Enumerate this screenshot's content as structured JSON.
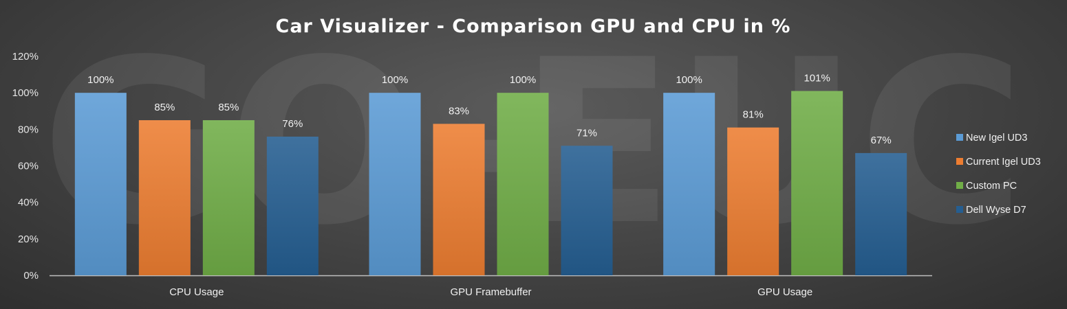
{
  "chart_data": {
    "type": "bar",
    "title": "Car Visualizer - Comparison GPU and CPU in %",
    "watermark": "GO-EUC",
    "xlabel": "",
    "ylabel": "",
    "categories": [
      "CPU Usage",
      "GPU Framebuffer",
      "GPU Usage"
    ],
    "series": [
      {
        "name": "New Igel UD3",
        "values": [
          100,
          100,
          100
        ],
        "color": "#5b9bd5"
      },
      {
        "name": "Current Igel UD3",
        "values": [
          85,
          83,
          81
        ],
        "color": "#ed7d31"
      },
      {
        "name": "Custom PC",
        "values": [
          85,
          100,
          101
        ],
        "color": "#70ad47"
      },
      {
        "name": "Dell Wyse D7",
        "values": [
          76,
          71,
          67
        ],
        "color": "#255e91"
      }
    ],
    "data_labels": [
      [
        "100%",
        "100%",
        "100%"
      ],
      [
        "85%",
        "83%",
        "81%"
      ],
      [
        "85%",
        "100%",
        "101%"
      ],
      [
        "76%",
        "71%",
        "67%"
      ]
    ],
    "ylim": [
      0,
      120
    ],
    "yticks": [
      0,
      20,
      40,
      60,
      80,
      100,
      120
    ],
    "ytick_labels": [
      "0%",
      "20%",
      "40%",
      "60%",
      "80%",
      "100%",
      "120%"
    ],
    "grid": false,
    "legend_position": "right"
  }
}
